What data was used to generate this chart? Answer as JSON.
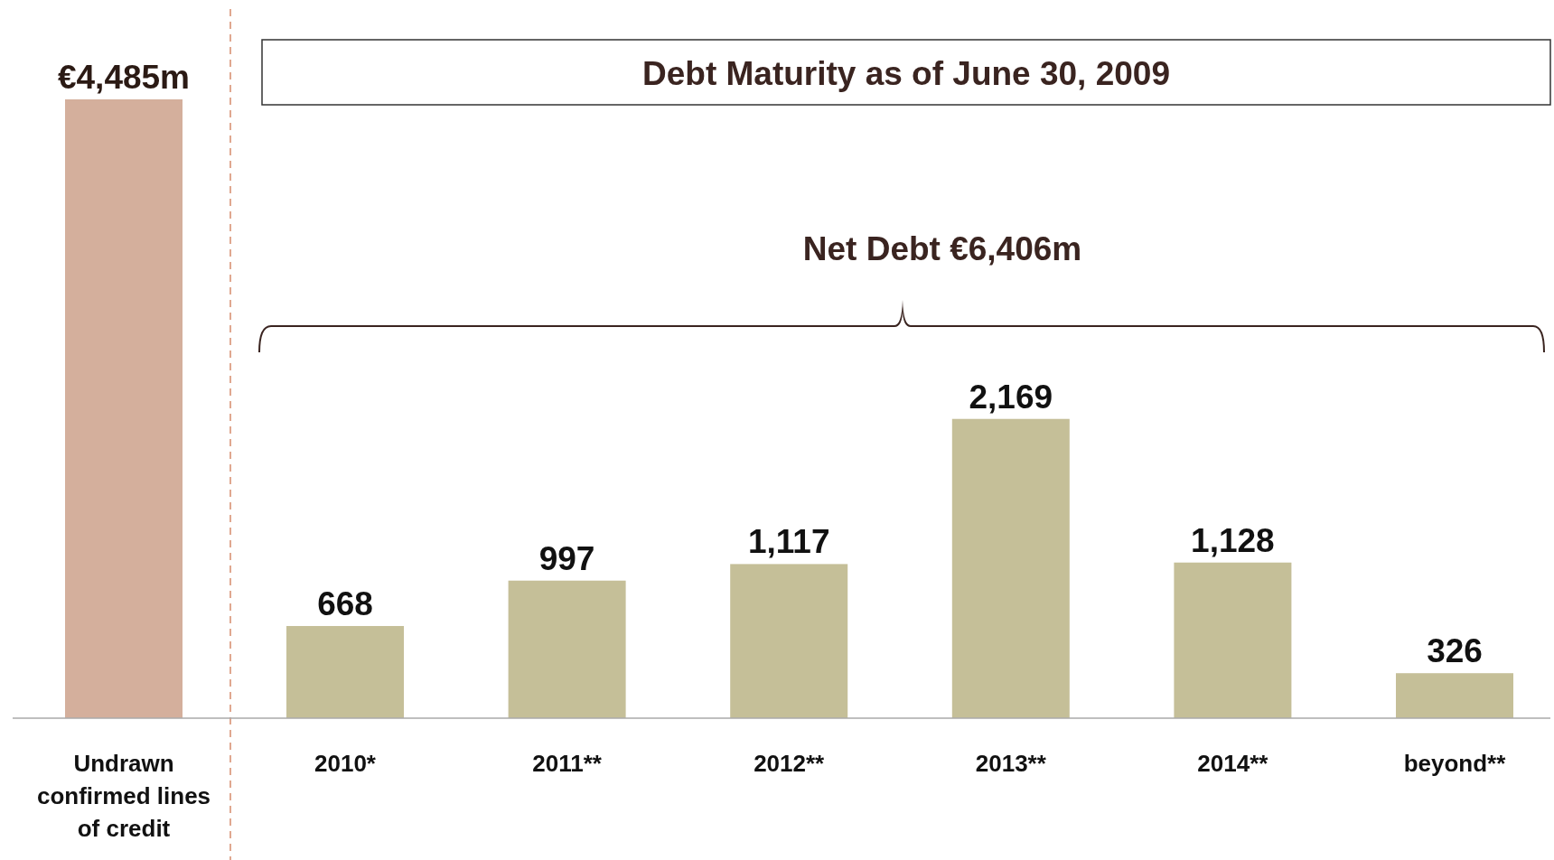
{
  "chart_data": {
    "type": "bar",
    "title": "Debt Maturity as of June 30, 2009",
    "annotations": [
      "Net Debt €6,406m"
    ],
    "categories": [
      "Undrawn confirmed lines of credit",
      "2010*",
      "2011**",
      "2012**",
      "2013**",
      "2014**",
      "beyond**"
    ],
    "values": [
      4485,
      668,
      997,
      1117,
      2169,
      1128,
      326
    ],
    "colors": [
      "#d4af9c",
      "#c5bf98",
      "#c5bf98",
      "#c5bf98",
      "#c5bf98",
      "#c5bf98",
      "#c5bf98"
    ],
    "value_labels": [
      "€4,485m",
      "668",
      "997",
      "1,117",
      "2,169",
      "1,128",
      "326"
    ],
    "grid": false
  }
}
